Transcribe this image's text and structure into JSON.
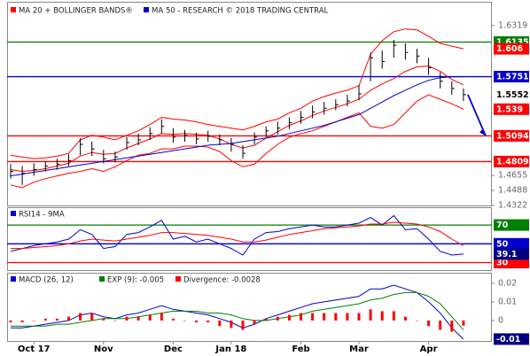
{
  "chart_data": [
    {
      "type": "ohlc",
      "categories": [
        null,
        null,
        "Oct 17",
        null,
        null,
        null,
        null,
        null,
        "Nov",
        null,
        null,
        null,
        null,
        null,
        "Dec",
        null,
        null,
        null,
        null,
        "Jan 18",
        null,
        null,
        null,
        null,
        null,
        "Feb",
        null,
        null,
        null,
        null,
        "Mar",
        null,
        null,
        null,
        null,
        null,
        "Apr",
        null,
        null,
        null
      ],
      "high": [
        1.478,
        1.476,
        1.479,
        1.481,
        1.484,
        1.489,
        1.507,
        1.503,
        1.494,
        1.492,
        1.508,
        1.512,
        1.519,
        1.528,
        1.518,
        1.516,
        1.513,
        1.515,
        1.511,
        1.507,
        1.499,
        1.513,
        1.52,
        1.525,
        1.53,
        1.537,
        1.543,
        1.547,
        1.55,
        1.555,
        1.566,
        1.602,
        1.604,
        1.616,
        1.612,
        1.606,
        1.596,
        1.58,
        1.57,
        1.562
      ],
      "low": [
        1.462,
        1.455,
        1.465,
        1.47,
        1.472,
        1.476,
        1.488,
        1.487,
        1.479,
        1.48,
        1.494,
        1.499,
        1.505,
        1.512,
        1.502,
        1.503,
        1.5,
        1.503,
        1.499,
        1.492,
        1.484,
        1.5,
        1.508,
        1.511,
        1.517,
        1.523,
        1.529,
        1.533,
        1.538,
        1.542,
        1.549,
        1.57,
        1.584,
        1.596,
        1.594,
        1.59,
        1.577,
        1.562,
        1.555,
        1.548
      ],
      "close": [
        1.47,
        1.468,
        1.472,
        1.476,
        1.478,
        1.482,
        1.5,
        1.495,
        1.484,
        1.486,
        1.502,
        1.505,
        1.512,
        1.52,
        1.508,
        1.51,
        1.506,
        1.509,
        1.505,
        1.5,
        1.49,
        1.508,
        1.515,
        1.518,
        1.524,
        1.53,
        1.536,
        1.54,
        1.544,
        1.548,
        1.556,
        1.596,
        1.592,
        1.61,
        1.602,
        1.598,
        1.585,
        1.57,
        1.562,
        1.5552
      ],
      "bar_color": "#000000",
      "series": [
        {
          "name": "MA 20 + BOLLINGER BANDS®",
          "color": "#ff0000",
          "values": [
            1.472,
            1.47,
            1.471,
            1.473,
            1.476,
            1.479,
            1.487,
            1.491,
            1.489,
            1.49,
            1.496,
            1.501,
            1.506,
            1.512,
            1.511,
            1.512,
            1.511,
            1.51,
            1.506,
            1.5,
            1.496,
            1.499,
            1.507,
            1.514,
            1.521,
            1.526,
            1.532,
            1.537,
            1.541,
            1.545,
            1.55,
            1.56,
            1.567,
            1.573,
            1.581,
            1.586,
            1.587,
            1.581,
            1.572,
            1.566
          ],
          "upper": [
            1.488,
            1.486,
            1.484,
            1.485,
            1.487,
            1.49,
            1.505,
            1.51,
            1.508,
            1.505,
            1.51,
            1.515,
            1.522,
            1.53,
            1.528,
            1.527,
            1.525,
            1.522,
            1.52,
            1.518,
            1.516,
            1.52,
            1.525,
            1.528,
            1.535,
            1.54,
            1.548,
            1.553,
            1.557,
            1.56,
            1.565,
            1.6,
            1.615,
            1.625,
            1.628,
            1.627,
            1.62,
            1.612,
            1.609,
            1.606
          ],
          "lower": [
            1.455,
            1.452,
            1.458,
            1.462,
            1.465,
            1.468,
            1.47,
            1.473,
            1.47,
            1.475,
            1.482,
            1.488,
            1.49,
            1.495,
            1.495,
            1.498,
            1.498,
            1.497,
            1.492,
            1.482,
            1.475,
            1.478,
            1.49,
            1.5,
            1.508,
            1.512,
            1.515,
            1.52,
            1.525,
            1.53,
            1.535,
            1.52,
            1.518,
            1.522,
            1.535,
            1.548,
            1.555,
            1.55,
            1.545,
            1.539
          ]
        },
        {
          "name": "MA 50 - RESEARCH © 2018 TRADING CENTRAL",
          "color": "#0000cc",
          "values": [
            1.465,
            1.467,
            1.469,
            1.471,
            1.473,
            1.475,
            1.477,
            1.479,
            1.481,
            1.483,
            1.485,
            1.487,
            1.489,
            1.491,
            1.493,
            1.495,
            1.497,
            1.499,
            1.5,
            1.501,
            1.503,
            1.505,
            1.507,
            1.509,
            1.512,
            1.515,
            1.518,
            1.521,
            1.525,
            1.529,
            1.533,
            1.54,
            1.547,
            1.554,
            1.56,
            1.566,
            1.571,
            1.574,
            1.575,
            1.5751
          ]
        }
      ],
      "levels": [
        {
          "value": 1.6135,
          "color": "#008000"
        },
        {
          "value": 1.5751,
          "color": "#0000cc"
        },
        {
          "value": 1.5094,
          "color": "#ff0000"
        },
        {
          "value": 1.4809,
          "color": "#ff0000"
        }
      ],
      "ylim": [
        1.4322,
        1.6582
      ],
      "yticks": [
        1.6319,
        1.4655,
        1.4488,
        1.4322
      ]
    },
    {
      "type": "line",
      "title": "RSI14 - 9MA",
      "series": [
        {
          "color": "#0000cc",
          "values": [
            42,
            45,
            48,
            50,
            52,
            55,
            65,
            60,
            45,
            47,
            60,
            62,
            68,
            75,
            55,
            58,
            52,
            55,
            50,
            45,
            38,
            55,
            62,
            63,
            66,
            68,
            70,
            68,
            68,
            70,
            72,
            78,
            70,
            80,
            65,
            66,
            55,
            42,
            38,
            39.1
          ]
        },
        {
          "color": "#ff0000",
          "values": [
            45,
            45,
            46,
            47,
            48,
            50,
            53,
            55,
            54,
            53,
            55,
            57,
            59,
            62,
            62,
            61,
            60,
            59,
            57,
            55,
            52,
            52,
            54,
            57,
            60,
            62,
            64,
            66,
            67,
            68,
            69,
            71,
            71,
            73,
            72,
            71,
            68,
            63,
            55,
            48
          ]
        }
      ],
      "levels": [
        {
          "value": 70,
          "color": "#008000"
        },
        {
          "value": 50,
          "color": "#0000cc"
        },
        {
          "value": 30,
          "color": "#ff0000"
        }
      ],
      "ylim": [
        22,
        88
      ]
    },
    {
      "type": "macd",
      "series": [
        {
          "name": "MACD (26, 12)",
          "color": "#0000cc",
          "values": [
            -0.004,
            -0.004,
            -0.003,
            -0.002,
            -0.001,
            0,
            0.003,
            0.004,
            0.002,
            0.001,
            0.003,
            0.004,
            0.006,
            0.008,
            0.006,
            0.005,
            0.004,
            0.003,
            0.001,
            -0.001,
            -0.004,
            -0.002,
            0.001,
            0.003,
            0.005,
            0.007,
            0.009,
            0.01,
            0.011,
            0.012,
            0.013,
            0.017,
            0.017,
            0.019,
            0.017,
            0.015,
            0.01,
            0.004,
            -0.004,
            -0.01
          ]
        },
        {
          "name": "EXP (9): -0.005",
          "color": "#008000",
          "values": [
            -0.003,
            -0.003,
            -0.003,
            -0.003,
            -0.002,
            -0.002,
            -0.001,
            0,
            0.001,
            0.001,
            0.001,
            0.002,
            0.003,
            0.004,
            0.005,
            0.005,
            0.005,
            0.004,
            0.004,
            0.003,
            0.001,
            0,
            0,
            0.001,
            0.002,
            0.003,
            0.005,
            0.006,
            0.007,
            0.008,
            0.009,
            0.011,
            0.012,
            0.014,
            0.015,
            0.015,
            0.013,
            0.009,
            0.002,
            -0.005
          ]
        },
        {
          "name": "Divergence: -0.0028",
          "color": "#ff0000",
          "bars": true,
          "values": [
            -0.001,
            -0.001,
            0,
            0.001,
            0.001,
            0.002,
            0.004,
            0.004,
            0.001,
            0,
            0.002,
            0.002,
            0.003,
            0.004,
            0.001,
            0,
            -0.001,
            -0.001,
            -0.003,
            -0.004,
            -0.005,
            -0.002,
            0.001,
            0.002,
            0.003,
            0.004,
            0.004,
            0.004,
            0.004,
            0.004,
            0.004,
            0.006,
            0.005,
            0.005,
            0.002,
            0,
            -0.003,
            -0.005,
            -0.006,
            -0.0028
          ]
        }
      ],
      "ylim": [
        -0.011,
        0.0252
      ],
      "yticks": [
        0.02,
        0.01,
        0
      ]
    }
  ]
}
